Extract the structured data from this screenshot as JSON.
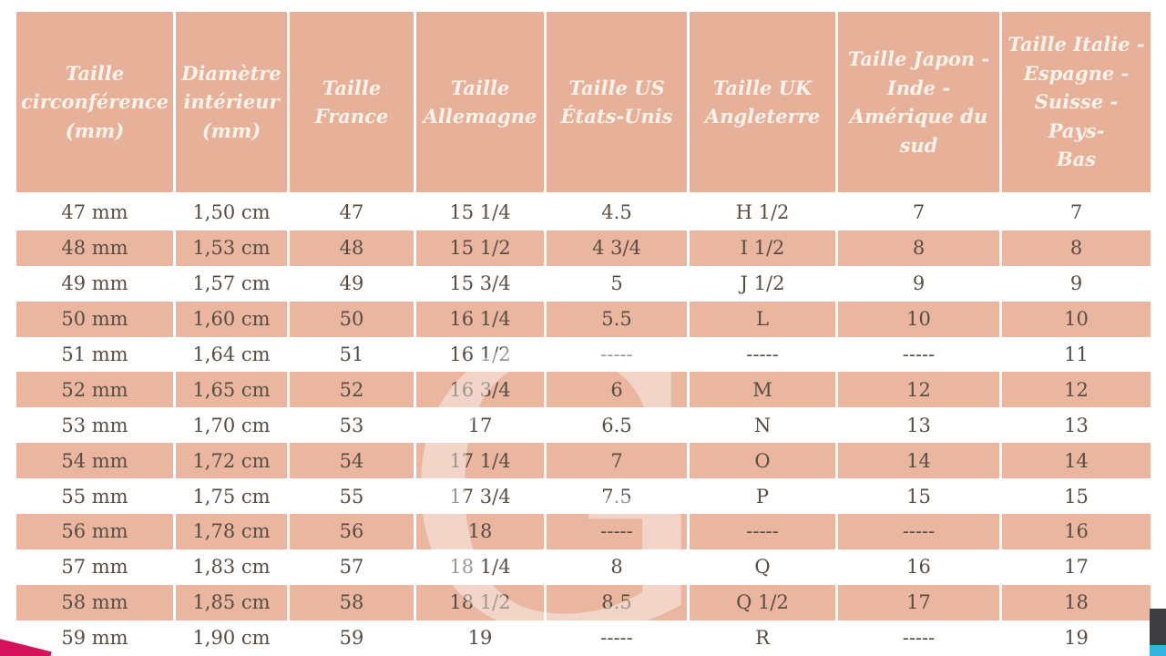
{
  "chart_data": {
    "type": "table",
    "columns": [
      "Taille\ncirconférence\n(mm)",
      "Diamètre\nintérieur\n(mm)",
      "Taille\nFrance",
      "Taille\nAllemagne",
      "Taille US\nÉtats-Unis",
      "Taille UK\nAngleterre",
      "Taille Japon -\nInde -\nAmérique du\nsud",
      "Taille Italie -\nEspagne -\nSuisse - Pays-\nBas"
    ],
    "rows": [
      [
        "47 mm",
        "1,50 cm",
        "47",
        "15 1/4",
        "4.5",
        "H 1/2",
        "7",
        "7"
      ],
      [
        "48 mm",
        "1,53 cm",
        "48",
        "15 1/2",
        "4 3/4",
        "I 1/2",
        "8",
        "8"
      ],
      [
        "49 mm",
        "1,57 cm",
        "49",
        "15 3/4",
        "5",
        "J 1/2",
        "9",
        "9"
      ],
      [
        "50 mm",
        "1,60 cm",
        "50",
        "16 1/4",
        "5.5",
        "L",
        "10",
        "10"
      ],
      [
        "51 mm",
        "1,64 cm",
        "51",
        "16 1/2",
        "-----",
        "-----",
        "-----",
        "11"
      ],
      [
        "52 mm",
        "1,65 cm",
        "52",
        "16 3/4",
        "6",
        "M",
        "12",
        "12"
      ],
      [
        "53 mm",
        "1,70 cm",
        "53",
        "17",
        "6.5",
        "N",
        "13",
        "13"
      ],
      [
        "54 mm",
        "1,72 cm",
        "54",
        "17 1/4",
        "7",
        "O",
        "14",
        "14"
      ],
      [
        "55 mm",
        "1,75 cm",
        "55",
        "17 3/4",
        "7.5",
        "P",
        "15",
        "15"
      ],
      [
        "56 mm",
        "1,78 cm",
        "56",
        "18",
        "-----",
        "-----",
        "-----",
        "16"
      ],
      [
        "57 mm",
        "1,83 cm",
        "57",
        "18 1/4",
        "8",
        "Q",
        "16",
        "17"
      ],
      [
        "58 mm",
        "1,85 cm",
        "58",
        "18 1/2",
        "8.5",
        "Q 1/2",
        "17",
        "18"
      ],
      [
        "59 mm",
        "1,90 cm",
        "59",
        "19",
        "-----",
        "R",
        "-----",
        "19"
      ]
    ]
  },
  "watermark": {
    "glyph": "G"
  },
  "colors": {
    "header_bg": "#e7b098",
    "row_alt_bg": "#eab6a0",
    "header_text": "#fbf3ec",
    "cell_text": "#584d43",
    "corner_magenta": "#d4135c",
    "corner_dark": "#3e3e41",
    "corner_cyan": "#35b4e2"
  }
}
